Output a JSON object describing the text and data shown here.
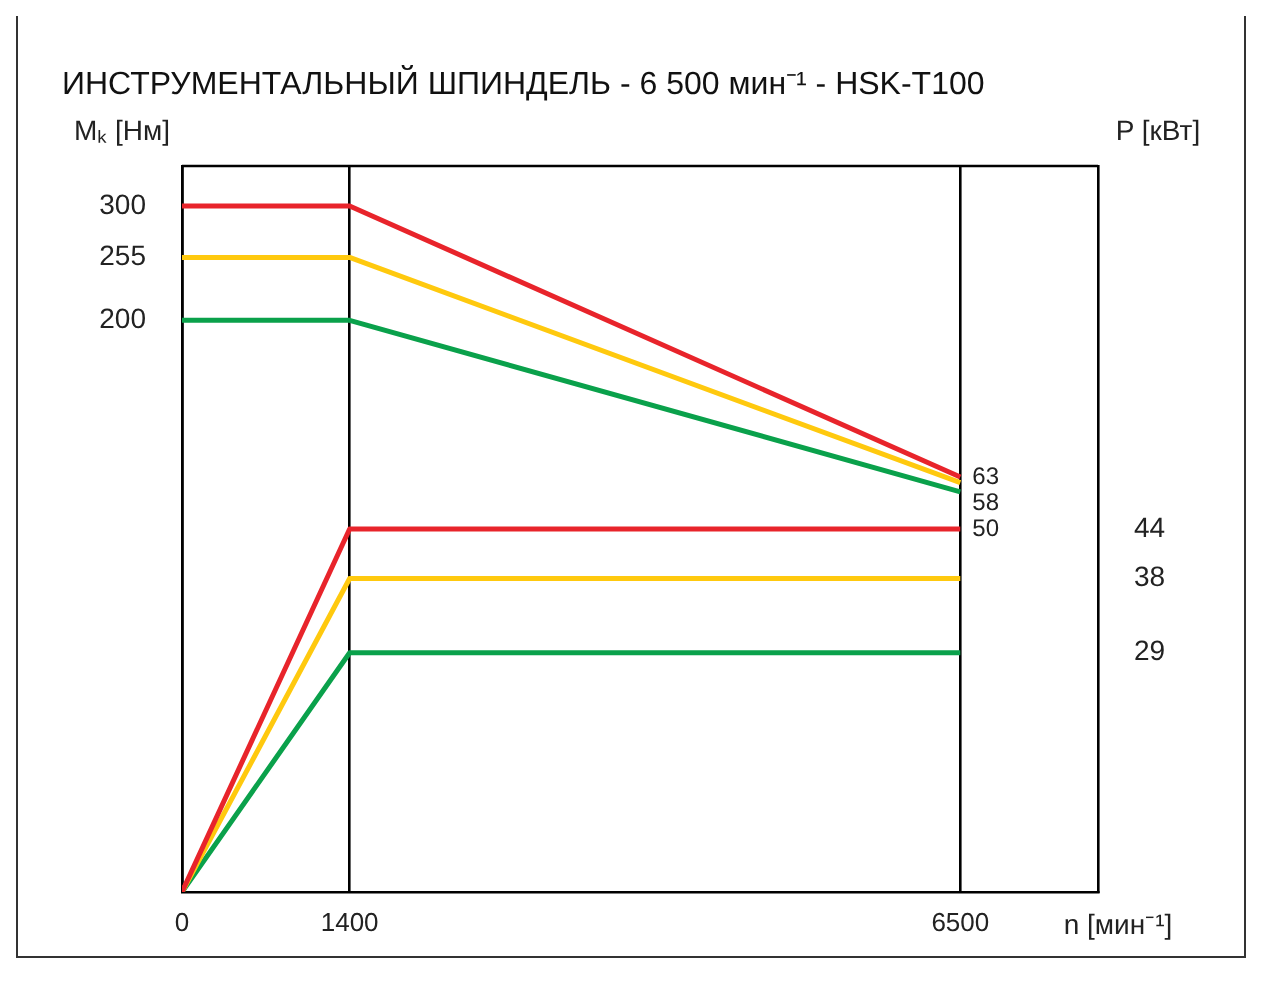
{
  "chart_data": {
    "type": "line",
    "title": "ИНСТРУМЕНТАЛЬНЫЙ ШПИНДЕЛЬ - 6 500 мин⁻¹ - HSK-T100",
    "xlabel": "n [мин⁻¹]",
    "ylabel": "Mₖ [Нм]",
    "y2label": "P [кВт]",
    "xlim": [
      0,
      7650
    ],
    "xticks": [
      0,
      1400,
      6500
    ],
    "ylim": [
      -300,
      335
    ],
    "yticks": [
      200,
      255,
      300
    ],
    "y2lim": [
      0,
      88
    ],
    "y2ticks": [
      29,
      38,
      44
    ],
    "grid": "x",
    "marker": "none",
    "series": [
      {
        "color": "#e8242b",
        "x": [
          0,
          1400,
          6500
        ],
        "values": [
          300,
          300,
          63
        ],
        "value_labels": [
          null,
          null,
          "63"
        ]
      },
      {
        "color": "#ffc90e",
        "x": [
          0,
          1400,
          6500
        ],
        "values": [
          255,
          255,
          58
        ],
        "value_labels": [
          null,
          null,
          "58"
        ]
      },
      {
        "color": "#0aa14b",
        "x": [
          0,
          1400,
          6500
        ],
        "values": [
          200,
          200,
          50
        ],
        "value_labels": [
          null,
          null,
          "50"
        ]
      },
      {
        "color": "#e8242b",
        "x": [
          0,
          1400,
          6500
        ],
        "values": [
          0,
          44,
          44
        ],
        "axis": "y2"
      },
      {
        "color": "#ffc90e",
        "x": [
          0,
          1400,
          6500
        ],
        "values": [
          0,
          38,
          38
        ],
        "axis": "y2"
      },
      {
        "color": "#0aa14b",
        "x": [
          0,
          1400,
          6500
        ],
        "values": [
          0,
          29,
          29
        ],
        "axis": "y2"
      }
    ]
  }
}
